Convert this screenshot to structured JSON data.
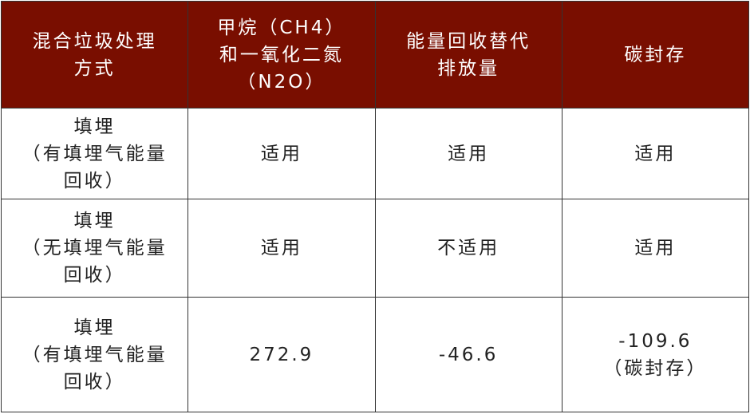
{
  "header_color": "#790e00",
  "columns": [
    {
      "lines": [
        "混合垃圾处理",
        "方式"
      ]
    },
    {
      "lines": [
        "甲烷（CH4）",
        "和一氧化二氮",
        "（N2O）"
      ]
    },
    {
      "lines": [
        "能量回收替代",
        "排放量"
      ]
    },
    {
      "lines": [
        "碳封存"
      ]
    }
  ],
  "rows": [
    {
      "method": [
        "填埋",
        "（有填埋气能量",
        "回收）"
      ],
      "ch4_n2o": [
        "适用"
      ],
      "energy": [
        "适用"
      ],
      "carbon": [
        "适用"
      ]
    },
    {
      "method": [
        "填埋",
        "（无填埋气能量",
        "回收）"
      ],
      "ch4_n2o": [
        "适用"
      ],
      "energy": [
        "不适用"
      ],
      "carbon": [
        "适用"
      ]
    },
    {
      "method": [
        "填埋",
        "（有填埋气能量",
        "回收）"
      ],
      "ch4_n2o": [
        "272.9"
      ],
      "energy": [
        "-46.6"
      ],
      "carbon": [
        "-109.6",
        "（碳封存）"
      ]
    }
  ]
}
